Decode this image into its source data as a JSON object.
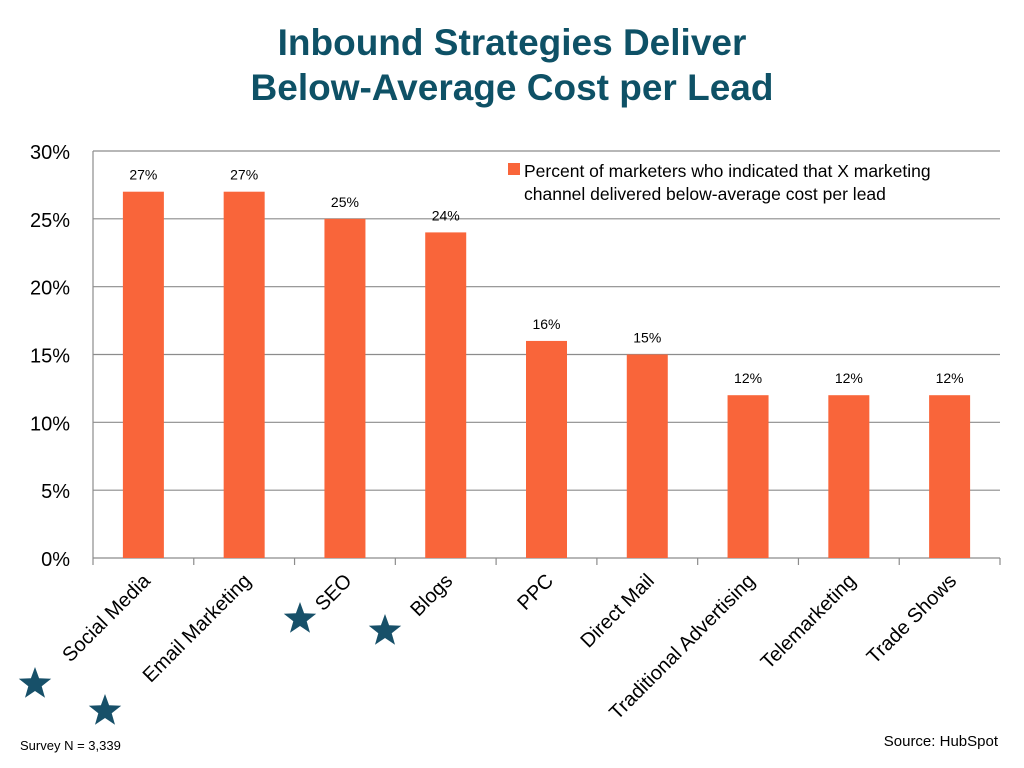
{
  "title_line1": "Inbound Strategies Deliver",
  "title_line2": "Below-Average Cost per Lead",
  "survey_note": "Survey N = 3,339",
  "source_note": "Source: HubSpot",
  "star_icon": "star-icon",
  "colors": {
    "bar": "#f9653a",
    "title": "#0e5166",
    "star": "#175069",
    "grid": "#8c8c8c"
  },
  "starred_categories": [
    "Social Media",
    "Email Marketing",
    "SEO",
    "Blogs"
  ],
  "chart_data": {
    "type": "bar",
    "title": "Inbound Strategies Deliver Below-Average Cost per Lead",
    "xlabel": "",
    "ylabel": "",
    "categories": [
      "Social Media",
      "Email Marketing",
      "SEO",
      "Blogs",
      "PPC",
      "Direct Mail",
      "Traditional Advertising",
      "Telemarketing",
      "Trade Shows"
    ],
    "series": [
      {
        "name": "Percent of marketers who indicated that X marketing channel delivered below-average cost per lead",
        "values": [
          27,
          27,
          25,
          24,
          16,
          15,
          12,
          12,
          12
        ]
      }
    ],
    "data_labels": [
      "27%",
      "27%",
      "25%",
      "24%",
      "16%",
      "15%",
      "12%",
      "12%",
      "12%"
    ],
    "ylim": [
      0,
      30
    ],
    "y_ticks": [
      0,
      5,
      10,
      15,
      20,
      25,
      30
    ],
    "y_tick_labels": [
      "0%",
      "5%",
      "10%",
      "15%",
      "20%",
      "25%",
      "30%"
    ],
    "grid": true,
    "legend_position": "top-right",
    "legend_text_lines": [
      "Percent of marketers who indicated that X marketing",
      "channel delivered below-average cost per lead"
    ]
  }
}
